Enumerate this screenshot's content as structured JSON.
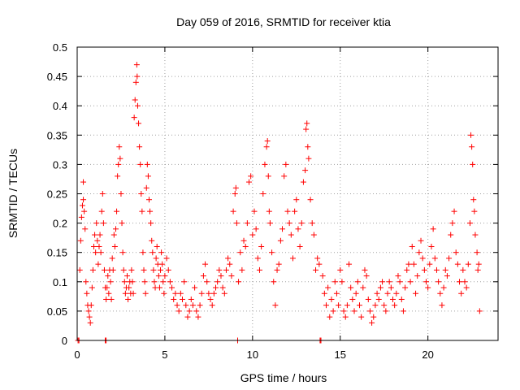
{
  "chart_data": {
    "type": "scatter",
    "title": "Day 059 of 2016, SRMTID for receiver ktia",
    "xlabel": "GPS time / hours",
    "ylabel": "SRMTID / TECUs",
    "xlim": [
      0,
      24
    ],
    "ylim": [
      0,
      0.5
    ],
    "x_ticks": [
      0,
      5,
      10,
      15,
      20
    ],
    "y_ticks": [
      0,
      0.05,
      0.1,
      0.15,
      0.2,
      0.25,
      0.3,
      0.35,
      0.4,
      0.45,
      0.5
    ],
    "x_tick_labels": [
      "0",
      "5",
      "10",
      "15",
      "20"
    ],
    "y_tick_labels": [
      "0",
      "0.05",
      "0.1",
      "0.15",
      "0.2",
      "0.25",
      "0.3",
      "0.35",
      "0.4",
      "0.45",
      "0.5"
    ],
    "grid": true,
    "marker": "+",
    "color": "#ff0000",
    "series": [
      {
        "name": "SRMTID",
        "points": [
          [
            0.05,
            0.0
          ],
          [
            0.1,
            0.0
          ],
          [
            0.15,
            0.12
          ],
          [
            0.2,
            0.17
          ],
          [
            0.25,
            0.21
          ],
          [
            0.3,
            0.23
          ],
          [
            0.35,
            0.27
          ],
          [
            0.35,
            0.24
          ],
          [
            0.4,
            0.22
          ],
          [
            0.45,
            0.19
          ],
          [
            0.5,
            0.1
          ],
          [
            0.55,
            0.08
          ],
          [
            0.6,
            0.06
          ],
          [
            0.65,
            0.05
          ],
          [
            0.7,
            0.04
          ],
          [
            0.75,
            0.03
          ],
          [
            0.8,
            0.06
          ],
          [
            0.85,
            0.09
          ],
          [
            0.9,
            0.12
          ],
          [
            0.95,
            0.16
          ],
          [
            1.0,
            0.18
          ],
          [
            1.05,
            0.15
          ],
          [
            1.1,
            0.2
          ],
          [
            1.15,
            0.17
          ],
          [
            1.2,
            0.13
          ],
          [
            1.25,
            0.16
          ],
          [
            1.3,
            0.18
          ],
          [
            1.35,
            0.15
          ],
          [
            1.4,
            0.22
          ],
          [
            1.45,
            0.25
          ],
          [
            1.5,
            0.2
          ],
          [
            1.55,
            0.12
          ],
          [
            1.6,
            0.09
          ],
          [
            1.65,
            0.07
          ],
          [
            1.6,
            0.0
          ],
          [
            1.65,
            0.0
          ],
          [
            1.7,
            0.09
          ],
          [
            1.75,
            0.11
          ],
          [
            1.8,
            0.08
          ],
          [
            1.85,
            0.12
          ],
          [
            1.9,
            0.1
          ],
          [
            1.95,
            0.07
          ],
          [
            2.0,
            0.14
          ],
          [
            2.05,
            0.12
          ],
          [
            2.1,
            0.18
          ],
          [
            2.15,
            0.16
          ],
          [
            2.2,
            0.19
          ],
          [
            2.25,
            0.22
          ],
          [
            2.3,
            0.28
          ],
          [
            2.35,
            0.3
          ],
          [
            2.4,
            0.33
          ],
          [
            2.45,
            0.31
          ],
          [
            2.5,
            0.25
          ],
          [
            2.55,
            0.2
          ],
          [
            2.6,
            0.15
          ],
          [
            2.65,
            0.12
          ],
          [
            2.7,
            0.1
          ],
          [
            2.75,
            0.08
          ],
          [
            2.8,
            0.09
          ],
          [
            2.85,
            0.11
          ],
          [
            2.9,
            0.07
          ],
          [
            2.95,
            0.09
          ],
          [
            3.0,
            0.1
          ],
          [
            3.05,
            0.08
          ],
          [
            3.1,
            0.12
          ],
          [
            3.15,
            0.1
          ],
          [
            3.2,
            0.08
          ],
          [
            3.25,
            0.38
          ],
          [
            3.3,
            0.41
          ],
          [
            3.35,
            0.44
          ],
          [
            3.4,
            0.47
          ],
          [
            3.42,
            0.45
          ],
          [
            3.45,
            0.4
          ],
          [
            3.5,
            0.37
          ],
          [
            3.55,
            0.33
          ],
          [
            3.6,
            0.3
          ],
          [
            3.65,
            0.25
          ],
          [
            3.7,
            0.22
          ],
          [
            3.75,
            0.15
          ],
          [
            3.8,
            0.12
          ],
          [
            3.85,
            0.1
          ],
          [
            3.9,
            0.08
          ],
          [
            3.95,
            0.26
          ],
          [
            4.0,
            0.3
          ],
          [
            4.05,
            0.28
          ],
          [
            4.1,
            0.24
          ],
          [
            4.15,
            0.22
          ],
          [
            4.2,
            0.2
          ],
          [
            4.25,
            0.17
          ],
          [
            4.3,
            0.15
          ],
          [
            4.35,
            0.12
          ],
          [
            4.4,
            0.1
          ],
          [
            4.45,
            0.09
          ],
          [
            4.5,
            0.14
          ],
          [
            4.55,
            0.16
          ],
          [
            4.6,
            0.13
          ],
          [
            4.65,
            0.11
          ],
          [
            4.7,
            0.09
          ],
          [
            4.75,
            0.12
          ],
          [
            4.8,
            0.15
          ],
          [
            4.85,
            0.13
          ],
          [
            4.9,
            0.1
          ],
          [
            4.95,
            0.08
          ],
          [
            5.0,
            0.11
          ],
          [
            5.1,
            0.14
          ],
          [
            5.2,
            0.12
          ],
          [
            5.3,
            0.1
          ],
          [
            5.4,
            0.09
          ],
          [
            5.5,
            0.07
          ],
          [
            5.6,
            0.08
          ],
          [
            5.7,
            0.06
          ],
          [
            5.8,
            0.05
          ],
          [
            5.9,
            0.08
          ],
          [
            6.0,
            0.07
          ],
          [
            6.1,
            0.1
          ],
          [
            6.2,
            0.06
          ],
          [
            6.3,
            0.04
          ],
          [
            6.4,
            0.05
          ],
          [
            6.5,
            0.07
          ],
          [
            6.6,
            0.06
          ],
          [
            6.7,
            0.09
          ],
          [
            6.8,
            0.05
          ],
          [
            6.9,
            0.04
          ],
          [
            7.0,
            0.06
          ],
          [
            7.1,
            0.08
          ],
          [
            7.2,
            0.11
          ],
          [
            7.3,
            0.13
          ],
          [
            7.4,
            0.1
          ],
          [
            7.5,
            0.08
          ],
          [
            7.6,
            0.07
          ],
          [
            7.7,
            0.06
          ],
          [
            7.8,
            0.08
          ],
          [
            7.9,
            0.09
          ],
          [
            8.0,
            0.1
          ],
          [
            8.1,
            0.12
          ],
          [
            8.2,
            0.11
          ],
          [
            8.3,
            0.09
          ],
          [
            8.4,
            0.08
          ],
          [
            8.5,
            0.12
          ],
          [
            8.6,
            0.14
          ],
          [
            8.7,
            0.13
          ],
          [
            8.8,
            0.11
          ],
          [
            8.9,
            0.22
          ],
          [
            9.0,
            0.25
          ],
          [
            9.05,
            0.26
          ],
          [
            9.1,
            0.2
          ],
          [
            9.15,
            0.0
          ],
          [
            9.2,
            0.1
          ],
          [
            9.3,
            0.15
          ],
          [
            9.4,
            0.12
          ],
          [
            9.5,
            0.17
          ],
          [
            9.6,
            0.16
          ],
          [
            9.7,
            0.2
          ],
          [
            9.8,
            0.27
          ],
          [
            9.9,
            0.28
          ],
          [
            10.0,
            0.18
          ],
          [
            10.1,
            0.22
          ],
          [
            10.2,
            0.19
          ],
          [
            10.3,
            0.14
          ],
          [
            10.4,
            0.12
          ],
          [
            10.5,
            0.16
          ],
          [
            10.6,
            0.25
          ],
          [
            10.7,
            0.3
          ],
          [
            10.8,
            0.33
          ],
          [
            10.85,
            0.34
          ],
          [
            10.9,
            0.28
          ],
          [
            10.95,
            0.22
          ],
          [
            11.0,
            0.2
          ],
          [
            11.1,
            0.15
          ],
          [
            11.2,
            0.1
          ],
          [
            11.3,
            0.06
          ],
          [
            11.4,
            0.12
          ],
          [
            11.5,
            0.13
          ],
          [
            11.6,
            0.17
          ],
          [
            11.7,
            0.19
          ],
          [
            11.8,
            0.28
          ],
          [
            11.9,
            0.3
          ],
          [
            12.0,
            0.22
          ],
          [
            12.1,
            0.2
          ],
          [
            12.2,
            0.18
          ],
          [
            12.3,
            0.14
          ],
          [
            12.4,
            0.22
          ],
          [
            12.5,
            0.24
          ],
          [
            12.6,
            0.19
          ],
          [
            12.7,
            0.16
          ],
          [
            12.8,
            0.2
          ],
          [
            12.9,
            0.27
          ],
          [
            13.0,
            0.29
          ],
          [
            13.05,
            0.36
          ],
          [
            13.1,
            0.37
          ],
          [
            13.15,
            0.33
          ],
          [
            13.2,
            0.31
          ],
          [
            13.3,
            0.24
          ],
          [
            13.4,
            0.2
          ],
          [
            13.5,
            0.18
          ],
          [
            13.6,
            0.12
          ],
          [
            13.7,
            0.14
          ],
          [
            13.8,
            0.13
          ],
          [
            13.85,
            0.0
          ],
          [
            13.9,
            0.0
          ],
          [
            14.0,
            0.11
          ],
          [
            14.1,
            0.08
          ],
          [
            14.2,
            0.06
          ],
          [
            14.3,
            0.09
          ],
          [
            14.4,
            0.04
          ],
          [
            14.5,
            0.07
          ],
          [
            14.6,
            0.05
          ],
          [
            14.7,
            0.1
          ],
          [
            14.8,
            0.08
          ],
          [
            14.9,
            0.06
          ],
          [
            15.0,
            0.12
          ],
          [
            15.1,
            0.1
          ],
          [
            15.2,
            0.05
          ],
          [
            15.3,
            0.04
          ],
          [
            15.4,
            0.06
          ],
          [
            15.5,
            0.13
          ],
          [
            15.6,
            0.09
          ],
          [
            15.7,
            0.07
          ],
          [
            15.8,
            0.05
          ],
          [
            15.9,
            0.08
          ],
          [
            16.0,
            0.1
          ],
          [
            16.1,
            0.06
          ],
          [
            16.2,
            0.04
          ],
          [
            16.3,
            0.09
          ],
          [
            16.4,
            0.12
          ],
          [
            16.5,
            0.11
          ],
          [
            16.6,
            0.07
          ],
          [
            16.7,
            0.05
          ],
          [
            16.8,
            0.03
          ],
          [
            16.9,
            0.04
          ],
          [
            17.0,
            0.06
          ],
          [
            17.1,
            0.08
          ],
          [
            17.2,
            0.07
          ],
          [
            17.3,
            0.09
          ],
          [
            17.4,
            0.1
          ],
          [
            17.5,
            0.06
          ],
          [
            17.6,
            0.05
          ],
          [
            17.7,
            0.08
          ],
          [
            17.8,
            0.1
          ],
          [
            17.9,
            0.09
          ],
          [
            18.0,
            0.07
          ],
          [
            18.1,
            0.06
          ],
          [
            18.2,
            0.08
          ],
          [
            18.3,
            0.11
          ],
          [
            18.4,
            0.1
          ],
          [
            18.5,
            0.07
          ],
          [
            18.6,
            0.05
          ],
          [
            18.7,
            0.09
          ],
          [
            18.8,
            0.12
          ],
          [
            18.9,
            0.13
          ],
          [
            19.0,
            0.1
          ],
          [
            19.1,
            0.16
          ],
          [
            19.2,
            0.13
          ],
          [
            19.3,
            0.08
          ],
          [
            19.4,
            0.11
          ],
          [
            19.5,
            0.15
          ],
          [
            19.6,
            0.17
          ],
          [
            19.7,
            0.14
          ],
          [
            19.8,
            0.12
          ],
          [
            19.9,
            0.1
          ],
          [
            20.0,
            0.09
          ],
          [
            20.1,
            0.13
          ],
          [
            20.2,
            0.16
          ],
          [
            20.3,
            0.19
          ],
          [
            20.4,
            0.14
          ],
          [
            20.5,
            0.12
          ],
          [
            20.6,
            0.1
          ],
          [
            20.7,
            0.08
          ],
          [
            20.8,
            0.06
          ],
          [
            20.9,
            0.09
          ],
          [
            21.0,
            0.12
          ],
          [
            21.1,
            0.11
          ],
          [
            21.2,
            0.14
          ],
          [
            21.3,
            0.18
          ],
          [
            21.4,
            0.2
          ],
          [
            21.5,
            0.22
          ],
          [
            21.6,
            0.15
          ],
          [
            21.7,
            0.13
          ],
          [
            21.8,
            0.1
          ],
          [
            21.9,
            0.08
          ],
          [
            22.0,
            0.12
          ],
          [
            22.1,
            0.1
          ],
          [
            22.2,
            0.09
          ],
          [
            22.3,
            0.13
          ],
          [
            22.4,
            0.2
          ],
          [
            22.45,
            0.35
          ],
          [
            22.5,
            0.33
          ],
          [
            22.55,
            0.3
          ],
          [
            22.6,
            0.24
          ],
          [
            22.65,
            0.22
          ],
          [
            22.7,
            0.18
          ],
          [
            22.8,
            0.15
          ],
          [
            22.85,
            0.12
          ],
          [
            22.9,
            0.13
          ],
          [
            22.95,
            0.05
          ]
        ]
      }
    ]
  }
}
